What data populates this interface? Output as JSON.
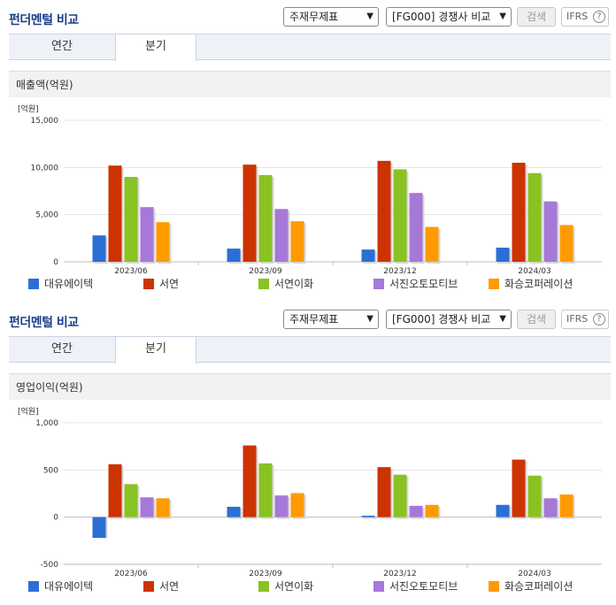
{
  "header": {
    "title": "펀더멘털 비교",
    "select_statement": "주재무제표",
    "select_compare": "[FG000] 경쟁사 비교",
    "search_label": "검색",
    "ifrs_label": "IFRS",
    "help_label": "?"
  },
  "tabs": {
    "annual": "연간",
    "quarter": "분기",
    "active": "quarter"
  },
  "colors": {
    "대유에이텍": "#2b6fd6",
    "서연": "#cc3300",
    "서연이화": "#88c223",
    "서진오토모티브": "#a678d8",
    "화승코퍼레이션": "#ff9a00"
  },
  "chart_data": [
    {
      "type": "bar",
      "metric_label": "매출액(억원)",
      "unit_label": "[억원]",
      "categories": [
        "2023/06",
        "2023/09",
        "2023/12",
        "2024/03"
      ],
      "yticks": [
        "15,000",
        "10,000",
        "5,000",
        "0"
      ],
      "ytick_values": [
        15000,
        10000,
        5000,
        0
      ],
      "ylim": [
        0,
        15000
      ],
      "series": [
        {
          "name": "대유에이텍",
          "values": [
            2800,
            1400,
            1300,
            1500
          ]
        },
        {
          "name": "서연",
          "values": [
            10200,
            10300,
            10700,
            10500
          ]
        },
        {
          "name": "서연이화",
          "values": [
            9000,
            9200,
            9800,
            9400
          ]
        },
        {
          "name": "서진오토모티브",
          "values": [
            5800,
            5600,
            7300,
            6400
          ]
        },
        {
          "name": "화승코퍼레이션",
          "values": [
            4200,
            4300,
            3700,
            3900
          ]
        }
      ]
    },
    {
      "type": "bar",
      "metric_label": "영업이익(억원)",
      "unit_label": "[억원]",
      "categories": [
        "2023/06",
        "2023/09",
        "2023/12",
        "2024/03"
      ],
      "yticks": [
        "1,000",
        "500",
        "0",
        "-500"
      ],
      "ytick_values": [
        1000,
        500,
        0,
        -500
      ],
      "ylim": [
        -500,
        1000
      ],
      "series": [
        {
          "name": "대유에이텍",
          "values": [
            -220,
            110,
            15,
            130
          ]
        },
        {
          "name": "서연",
          "values": [
            560,
            760,
            530,
            610
          ]
        },
        {
          "name": "서연이화",
          "values": [
            350,
            570,
            450,
            440
          ]
        },
        {
          "name": "서진오토모티브",
          "values": [
            210,
            230,
            120,
            200
          ]
        },
        {
          "name": "화승코퍼레이션",
          "values": [
            200,
            255,
            130,
            240
          ]
        }
      ]
    }
  ]
}
